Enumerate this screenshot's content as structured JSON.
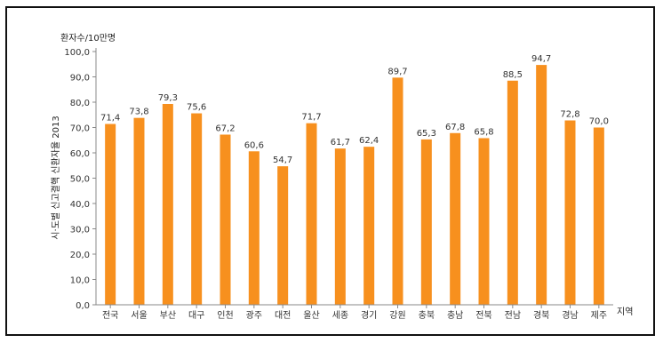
{
  "chart_data": {
    "type": "bar",
    "unit_label": "환자수/10만명",
    "ylabel": "시·도별 신고결핵 신환자율 2013",
    "xlabel": "지역",
    "categories": [
      "전국",
      "서울",
      "부산",
      "대구",
      "인천",
      "광주",
      "대전",
      "울산",
      "세종",
      "경기",
      "강원",
      "충북",
      "충남",
      "전북",
      "전남",
      "경북",
      "경남",
      "제주"
    ],
    "values": [
      71.4,
      73.8,
      79.3,
      75.6,
      67.2,
      60.6,
      54.7,
      71.7,
      61.7,
      62.4,
      89.7,
      65.3,
      67.8,
      65.8,
      88.5,
      94.7,
      72.8,
      70.0
    ],
    "value_labels": [
      "71,4",
      "73,8",
      "79,3",
      "75,6",
      "67,2",
      "60,6",
      "54,7",
      "71,7",
      "61,7",
      "62,4",
      "89,7",
      "65,3",
      "67,8",
      "65,8",
      "88,5",
      "94,7",
      "72,8",
      "70,0"
    ],
    "yticks": [
      0,
      10,
      20,
      30,
      40,
      50,
      60,
      70,
      80,
      90,
      100
    ],
    "ytick_labels": [
      "0,0",
      "10,0",
      "20,0",
      "30,0",
      "40,0",
      "50,0",
      "60,0",
      "70,0",
      "80,0",
      "90,0",
      "100,0"
    ],
    "ylim": [
      0,
      100
    ],
    "bar_color": "#F7901E",
    "grid": false
  }
}
